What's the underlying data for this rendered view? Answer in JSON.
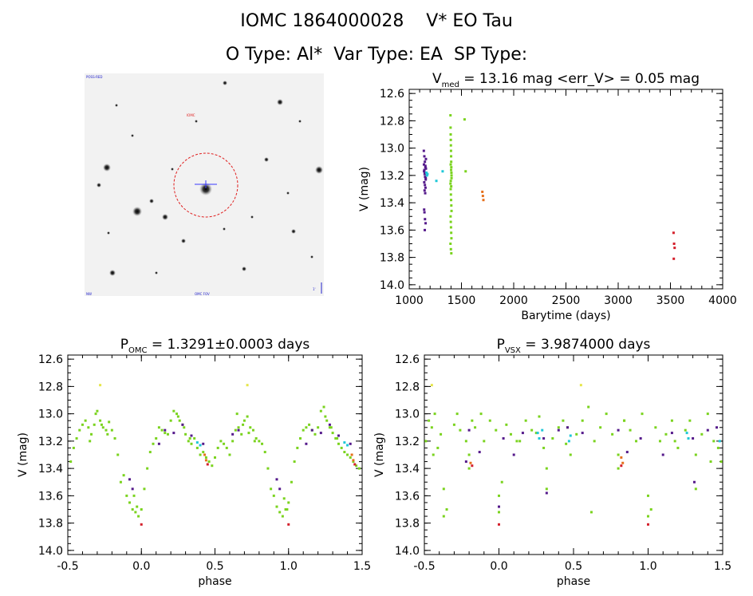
{
  "header": {
    "line1": "IOMC 1864000028    V* EO Tau",
    "line2": "O Type: Al*  Var Type: EA  SP Type:"
  },
  "colors": {
    "purple": "#551a8b",
    "green": "#7ad31e",
    "cyan": "#1fc8d8",
    "orange": "#e5701c",
    "red": "#d4202c",
    "yellow": "#e6e64a",
    "circle": "#e02020",
    "crosshair": "#3a3aff"
  },
  "image_panel": {
    "label_top_left": "POSS-RED",
    "label_red": "IOMC",
    "label_bottom": "OMC FOV",
    "label_bottom_left": "NW",
    "label_bottom_right": "1'"
  },
  "chart_data": [
    {
      "id": "lightcurve",
      "type": "scatter",
      "title_main": "V",
      "title_sub": "med",
      "title_rest": " = 13.16 mag <err_V> = 0.05 mag",
      "xlabel": "Barytime (days)",
      "ylabel": "V (mag)",
      "xlim": [
        1000,
        4000
      ],
      "ylim": [
        14.03,
        12.57
      ],
      "xticks": [
        "1000",
        "1500",
        "2000",
        "2500",
        "3000",
        "3500",
        "4000"
      ],
      "yticks": [
        "12.6",
        "12.8",
        "13.0",
        "13.2",
        "13.4",
        "13.6",
        "13.8",
        "14.0"
      ],
      "series": [
        {
          "color": "purple",
          "x": [
            1140,
            1145,
            1150,
            1155,
            1160,
            1142,
            1148,
            1152,
            1158,
            1144,
            1150,
            1156,
            1147,
            1153,
            1141,
            1160,
            1146,
            1151,
            1157,
            1143,
            1149,
            1155,
            1152,
            1158,
            1145
          ],
          "y": [
            13.02,
            13.06,
            13.1,
            13.13,
            13.15,
            13.17,
            13.19,
            13.21,
            13.23,
            13.25,
            13.27,
            13.29,
            13.31,
            13.33,
            13.12,
            13.08,
            13.47,
            13.52,
            13.55,
            13.45,
            13.6,
            13.14,
            13.18,
            13.22,
            13.16
          ]
        },
        {
          "color": "cyan",
          "x": [
            1165,
            1170,
            1175,
            1260,
            1320
          ],
          "y": [
            13.18,
            13.2,
            13.19,
            13.24,
            13.17
          ]
        },
        {
          "color": "green",
          "x": [
            1395,
            1396,
            1397,
            1398,
            1399,
            1400,
            1401,
            1402,
            1403,
            1404,
            1405,
            1395,
            1397,
            1399,
            1401,
            1403,
            1405,
            1396,
            1398,
            1400,
            1402,
            1404,
            1395,
            1399,
            1403,
            1397,
            1401,
            1405,
            1398,
            1402,
            1530,
            1540
          ],
          "y": [
            12.76,
            12.85,
            12.9,
            12.94,
            12.98,
            13.02,
            13.06,
            13.1,
            13.14,
            13.18,
            13.22,
            13.26,
            13.3,
            13.34,
            13.38,
            13.42,
            13.46,
            13.5,
            13.54,
            13.58,
            13.62,
            13.66,
            13.7,
            13.74,
            13.77,
            13.12,
            13.16,
            13.2,
            13.24,
            13.28,
            12.79,
            13.17
          ]
        },
        {
          "color": "orange",
          "x": [
            1700,
            1705,
            1710
          ],
          "y": [
            13.32,
            13.35,
            13.38
          ]
        },
        {
          "color": "red",
          "x": [
            3530,
            3535,
            3540,
            3532
          ],
          "y": [
            13.62,
            13.7,
            13.73,
            13.81
          ]
        }
      ]
    },
    {
      "id": "phase_omc",
      "type": "scatter",
      "title_main": "P",
      "title_sub": "OMC",
      "title_rest": " = 1.3291±0.0003 days",
      "xlabel": "phase",
      "ylabel": "V (mag)",
      "xlim": [
        -0.5,
        1.5
      ],
      "ylim": [
        14.03,
        12.57
      ],
      "xticks": [
        "-0.5",
        "0.0",
        "0.5",
        "1.0",
        "1.5"
      ],
      "yticks": [
        "12.6",
        "12.8",
        "13.0",
        "13.2",
        "13.4",
        "13.6",
        "13.8",
        "14.0"
      ],
      "series": [
        {
          "color": "green",
          "x": [
            -0.48,
            -0.46,
            -0.44,
            -0.42,
            -0.4,
            -0.38,
            -0.36,
            -0.34,
            -0.32,
            -0.3,
            -0.28,
            -0.26,
            -0.24,
            -0.22,
            -0.2,
            -0.18,
            -0.16,
            -0.14,
            -0.12,
            -0.1,
            -0.08,
            -0.06,
            -0.04,
            -0.02,
            0.0,
            0.02,
            0.04,
            0.06,
            0.08,
            0.1,
            0.12,
            0.14,
            0.16,
            0.18,
            0.2,
            0.22,
            0.24,
            0.26,
            0.28,
            0.3,
            0.32,
            0.34,
            0.36,
            0.38,
            0.4,
            0.42,
            0.44,
            0.46,
            0.48,
            0.5,
            0.52,
            0.54,
            0.56,
            0.58,
            0.6,
            0.62,
            0.64,
            0.66,
            0.68,
            0.7,
            0.72,
            0.74,
            0.76,
            0.78,
            0.8,
            0.82,
            0.84,
            0.86,
            0.88,
            0.9,
            0.92,
            0.94,
            0.96,
            0.98,
            1.0,
            1.02,
            1.04,
            1.06,
            1.08,
            1.1,
            1.12,
            1.14,
            1.16,
            1.18,
            1.2,
            1.22,
            1.24,
            1.26,
            1.28,
            1.3,
            1.32,
            1.34,
            1.36,
            1.38,
            1.4,
            1.42,
            1.44,
            1.46,
            1.48,
            -0.35,
            -0.31,
            -0.27,
            -0.23,
            0.25,
            0.29,
            0.33,
            0.65,
            0.69,
            0.73,
            0.77,
            1.25,
            1.29,
            1.33,
            -0.05,
            -0.03,
            0.97,
            0.99
          ],
          "y": [
            13.35,
            13.25,
            13.18,
            13.12,
            13.08,
            13.05,
            13.1,
            13.15,
            13.08,
            12.98,
            13.05,
            13.1,
            13.12,
            13.06,
            13.12,
            13.18,
            13.3,
            13.5,
            13.45,
            13.6,
            13.65,
            13.7,
            13.72,
            13.75,
            13.7,
            13.55,
            13.4,
            13.28,
            13.22,
            13.18,
            13.1,
            13.12,
            13.14,
            13.15,
            13.05,
            12.98,
            13.0,
            13.05,
            13.08,
            13.15,
            13.2,
            13.22,
            13.18,
            13.25,
            13.3,
            13.28,
            13.32,
            13.35,
            13.38,
            13.32,
            13.25,
            13.2,
            13.22,
            13.25,
            13.3,
            13.2,
            13.12,
            13.1,
            13.15,
            13.05,
            13.02,
            13.1,
            13.12,
            13.18,
            13.2,
            13.22,
            13.28,
            13.4,
            13.55,
            13.6,
            13.68,
            13.72,
            13.75,
            13.7,
            13.65,
            13.5,
            13.35,
            13.25,
            13.18,
            13.12,
            13.1,
            13.08,
            13.12,
            13.15,
            13.1,
            12.98,
            12.95,
            13.05,
            13.1,
            13.14,
            13.18,
            13.22,
            13.25,
            13.28,
            13.3,
            13.32,
            13.35,
            13.38,
            13.4,
            13.2,
            13.0,
            13.08,
            13.15,
            13.02,
            13.1,
            13.18,
            13.0,
            13.08,
            13.14,
            13.2,
            13.02,
            13.1,
            13.18,
            13.6,
            13.68,
            13.62,
            13.7
          ]
        },
        {
          "color": "purple",
          "x": [
            -0.08,
            -0.06,
            0.16,
            0.12,
            0.22,
            0.28,
            0.34,
            0.42,
            0.62,
            0.66,
            0.92,
            0.94,
            1.16,
            1.12,
            1.22,
            1.28,
            1.34,
            1.42
          ],
          "y": [
            13.48,
            13.55,
            13.12,
            13.22,
            13.14,
            13.08,
            13.16,
            13.22,
            13.15,
            13.12,
            13.48,
            13.55,
            13.12,
            13.22,
            13.14,
            13.08,
            13.16,
            13.22
          ]
        },
        {
          "color": "cyan",
          "x": [
            0.38,
            0.4,
            1.38,
            1.4
          ],
          "y": [
            13.21,
            13.23,
            13.21,
            13.23
          ]
        },
        {
          "color": "orange",
          "x": [
            0.43,
            0.44,
            1.43,
            1.44
          ],
          "y": [
            13.3,
            13.34,
            13.3,
            13.34
          ]
        },
        {
          "color": "red",
          "x": [
            0.0,
            0.45,
            1.0,
            1.45
          ],
          "y": [
            13.81,
            13.37,
            13.81,
            13.37
          ]
        },
        {
          "color": "yellow",
          "x": [
            -0.28,
            0.72
          ],
          "y": [
            12.79,
            12.79
          ]
        }
      ]
    },
    {
      "id": "phase_vsx",
      "type": "scatter",
      "title_main": "P",
      "title_sub": "VSX",
      "title_rest": " = 3.9874000 days",
      "xlabel": "phase",
      "ylabel": "V (mag)",
      "xlim": [
        -0.5,
        1.5
      ],
      "ylim": [
        14.03,
        12.57
      ],
      "xticks": [
        "-0.5",
        "0.0",
        "0.5",
        "1.0",
        "1.5"
      ],
      "yticks": [
        "12.6",
        "12.8",
        "13.0",
        "13.2",
        "13.4",
        "13.6",
        "13.8",
        "14.0"
      ],
      "series": [
        {
          "color": "green",
          "x": [
            -0.49,
            -0.47,
            -0.45,
            -0.43,
            -0.41,
            -0.39,
            -0.37,
            -0.35,
            -0.3,
            -0.28,
            -0.26,
            -0.22,
            -0.2,
            -0.18,
            -0.16,
            -0.12,
            -0.1,
            -0.06,
            -0.02,
            0.0,
            0.02,
            0.05,
            0.08,
            0.12,
            0.18,
            0.22,
            0.25,
            0.27,
            0.3,
            0.32,
            0.36,
            0.4,
            0.43,
            0.45,
            0.48,
            0.52,
            0.56,
            0.6,
            0.64,
            0.68,
            0.72,
            0.76,
            0.8,
            0.84,
            0.88,
            0.92,
            0.96,
            1.0,
            1.02,
            1.05,
            1.08,
            1.12,
            1.16,
            1.2,
            1.25,
            1.28,
            1.32,
            1.36,
            1.4,
            1.44,
            1.47,
            1.49,
            -0.37,
            -0.2,
            0.0,
            0.32,
            0.62,
            0.8,
            1.0,
            1.32,
            -0.44,
            0.14,
            0.46,
            0.84,
            1.18,
            1.42
          ],
          "y": [
            13.2,
            13.05,
            13.1,
            13.0,
            13.25,
            13.15,
            13.55,
            13.7,
            13.08,
            13.0,
            13.12,
            13.2,
            13.3,
            13.05,
            13.1,
            13.0,
            13.2,
            13.05,
            13.12,
            13.6,
            13.5,
            13.08,
            13.15,
            13.2,
            13.05,
            13.12,
            13.14,
            13.02,
            13.25,
            13.4,
            13.18,
            13.1,
            13.05,
            13.22,
            13.3,
            13.15,
            13.05,
            12.95,
            13.2,
            13.1,
            13.0,
            13.15,
            13.3,
            13.05,
            13.12,
            13.2,
            13.0,
            13.6,
            13.7,
            13.1,
            13.2,
            13.15,
            13.05,
            13.25,
            13.12,
            13.05,
            13.3,
            13.15,
            13.0,
            13.2,
            13.25,
            13.35,
            13.75,
            13.4,
            13.72,
            13.55,
            13.72,
            13.4,
            13.75,
            13.55,
            13.3,
            13.2,
            13.1,
            13.05,
            13.2,
            13.35
          ]
        },
        {
          "color": "purple",
          "x": [
            -0.2,
            -0.13,
            0.03,
            0.1,
            0.16,
            0.3,
            0.4,
            0.46,
            0.56,
            0.8,
            0.86,
            0.95,
            1.1,
            1.16,
            1.3,
            1.4,
            1.46,
            -0.22,
            0.32,
            1.31,
            0.0
          ],
          "y": [
            13.12,
            13.28,
            13.18,
            13.3,
            13.14,
            13.18,
            13.12,
            13.1,
            13.14,
            13.12,
            13.28,
            13.18,
            13.3,
            13.14,
            13.18,
            13.12,
            13.1,
            13.35,
            13.58,
            13.5,
            13.68
          ]
        },
        {
          "color": "cyan",
          "x": [
            0.26,
            0.27,
            0.29,
            0.47,
            0.48,
            1.26,
            1.27,
            1.48
          ],
          "y": [
            13.14,
            13.18,
            13.12,
            13.2,
            13.16,
            13.14,
            13.18,
            13.2
          ]
        },
        {
          "color": "orange",
          "x": [
            -0.19,
            0.82,
            0.83
          ],
          "y": [
            13.36,
            13.32,
            13.36
          ]
        },
        {
          "color": "red",
          "x": [
            0.0,
            1.0,
            0.82,
            -0.18
          ],
          "y": [
            13.81,
            13.81,
            13.38,
            13.38
          ]
        },
        {
          "color": "yellow",
          "x": [
            -0.45,
            0.55
          ],
          "y": [
            12.79,
            12.79
          ]
        }
      ]
    }
  ]
}
